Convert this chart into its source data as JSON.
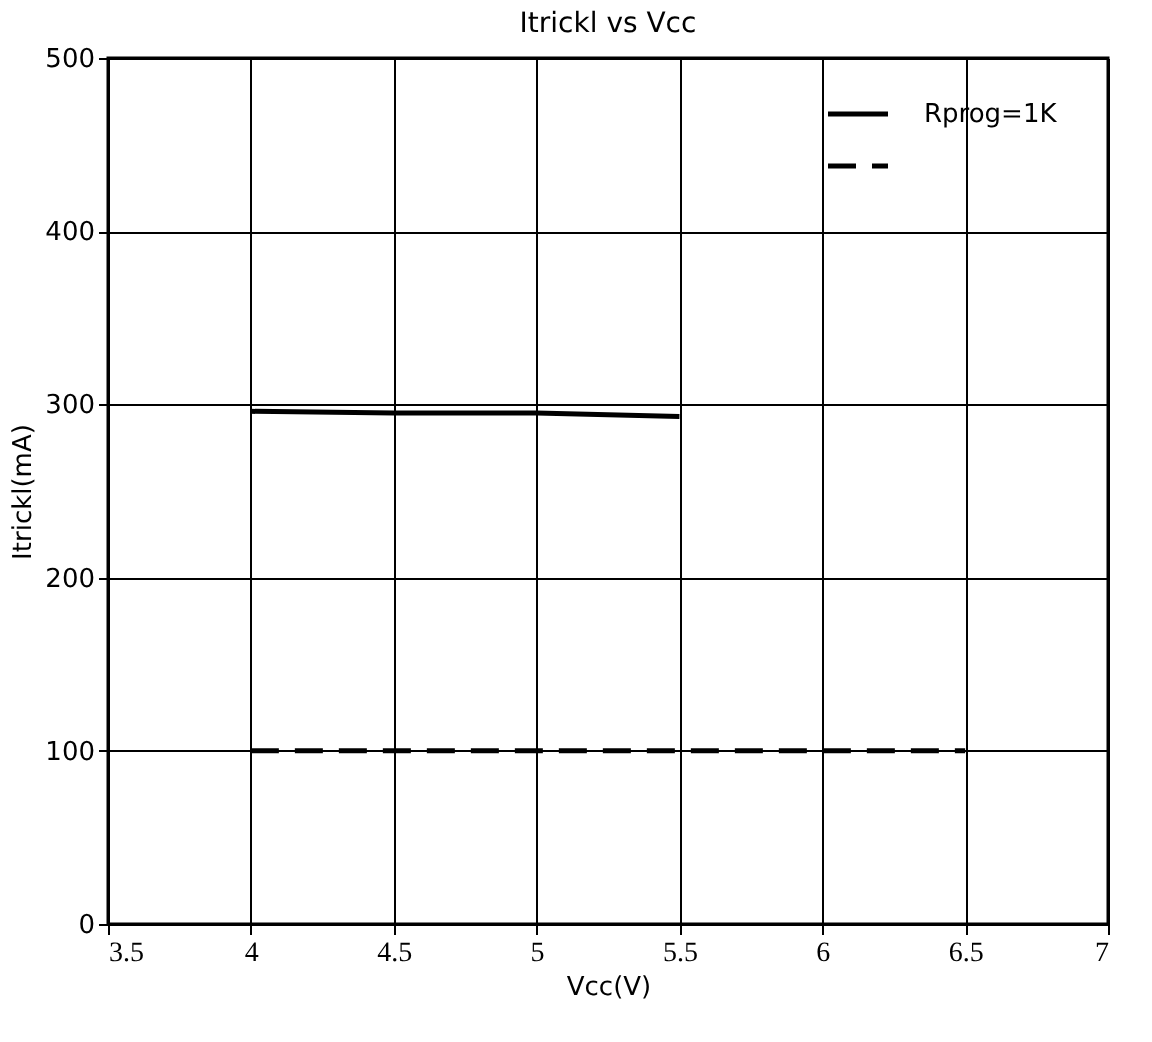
{
  "chart_data": {
    "type": "line",
    "title": "Itrickl vs Vcc",
    "xlabel": "Vcc(V)",
    "ylabel": "Itrickl(mA)",
    "xlim": [
      3.5,
      7
    ],
    "xticks": [
      3.5,
      4,
      4.5,
      5,
      5.5,
      6,
      6.5,
      7
    ],
    "ylim": [
      0,
      500
    ],
    "yticks": [
      0,
      100,
      200,
      300,
      400,
      500
    ],
    "grid": true,
    "legend": "top right",
    "marker": "none",
    "series": [
      {
        "name": "Rprog=1K",
        "color": "#000000",
        "line_style": "solid",
        "x": [
          4,
          4.5,
          5,
          5.5
        ],
        "values": [
          296,
          295,
          295,
          293
        ]
      },
      {
        "color": "#000000",
        "line_style": "dashed",
        "x": [
          4,
          4.5,
          5,
          5.5,
          6,
          6.5
        ],
        "values": [
          100,
          100,
          100,
          100,
          100,
          100
        ]
      }
    ]
  }
}
